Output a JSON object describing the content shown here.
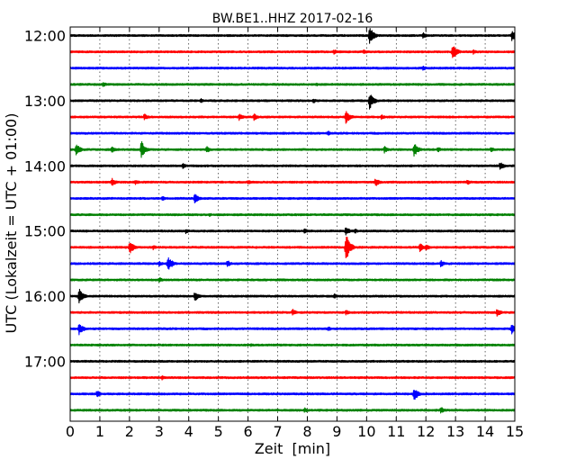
{
  "chart_data": {
    "type": "line",
    "title": "BW.BE1..HHZ 2017-02-16",
    "xlabel": "Zeit  [min]",
    "ylabel": "UTC (Lokalzeit = UTC + 01:00)",
    "xlim": [
      0,
      15
    ],
    "xticks": [
      "0",
      "1",
      "2",
      "3",
      "4",
      "5",
      "6",
      "7",
      "8",
      "9",
      "10",
      "11",
      "12",
      "13",
      "14",
      "15"
    ],
    "y_tick_labels": [
      "12:00",
      "13:00",
      "14:00",
      "15:00",
      "16:00",
      "17:00"
    ],
    "grid": "vertical dotted",
    "trace_colors": [
      "#000000",
      "#ff0000",
      "#0000ff",
      "#008000"
    ],
    "traces": [
      {
        "start": "12:00",
        "events": [
          [
            10.1,
            10
          ],
          [
            11.9,
            4
          ],
          [
            14.9,
            6
          ]
        ]
      },
      {
        "start": "12:15",
        "events": [
          [
            12.9,
            9
          ],
          [
            8.9,
            3
          ],
          [
            9.9,
            3
          ],
          [
            13.6,
            3
          ]
        ]
      },
      {
        "start": "12:30",
        "events": [
          [
            11.9,
            3
          ]
        ]
      },
      {
        "start": "12:45",
        "events": [
          [
            1.1,
            3
          ],
          [
            8.3,
            2
          ]
        ]
      },
      {
        "start": "13:00",
        "events": [
          [
            10.1,
            10
          ],
          [
            4.4,
            3
          ],
          [
            8.2,
            3
          ]
        ]
      },
      {
        "start": "13:15",
        "events": [
          [
            9.3,
            8
          ],
          [
            2.5,
            4
          ],
          [
            5.7,
            4
          ],
          [
            6.2,
            4
          ],
          [
            10.5,
            3
          ]
        ]
      },
      {
        "start": "13:30",
        "events": [
          [
            8.7,
            3
          ]
        ]
      },
      {
        "start": "13:45",
        "events": [
          [
            2.4,
            10
          ],
          [
            0.2,
            7
          ],
          [
            11.6,
            8
          ],
          [
            1.4,
            4
          ],
          [
            4.6,
            4
          ],
          [
            10.6,
            4
          ],
          [
            12.4,
            3
          ],
          [
            14.2,
            3
          ]
        ]
      },
      {
        "start": "14:00",
        "events": [
          [
            14.5,
            5
          ],
          [
            3.8,
            3
          ]
        ]
      },
      {
        "start": "14:15",
        "events": [
          [
            1.4,
            5
          ],
          [
            10.3,
            5
          ],
          [
            2.2,
            3
          ],
          [
            6.0,
            3
          ],
          [
            13.4,
            3
          ]
        ]
      },
      {
        "start": "14:30",
        "events": [
          [
            4.2,
            6
          ],
          [
            3.1,
            3
          ]
        ]
      },
      {
        "start": "14:45",
        "events": [
          [
            4.7,
            2
          ]
        ]
      },
      {
        "start": "15:00",
        "events": [
          [
            9.3,
            5
          ],
          [
            3.9,
            3
          ],
          [
            7.9,
            3
          ],
          [
            9.6,
            3
          ]
        ]
      },
      {
        "start": "15:15",
        "events": [
          [
            2.0,
            8
          ],
          [
            9.3,
            16
          ],
          [
            11.8,
            5
          ],
          [
            2.8,
            3
          ],
          [
            12.0,
            4
          ]
        ]
      },
      {
        "start": "15:30",
        "events": [
          [
            3.3,
            9
          ],
          [
            5.3,
            4
          ],
          [
            12.5,
            4
          ],
          [
            3.0,
            3
          ]
        ]
      },
      {
        "start": "15:45",
        "events": [
          [
            3.0,
            3
          ]
        ]
      },
      {
        "start": "16:00",
        "events": [
          [
            0.3,
            9
          ],
          [
            4.2,
            6
          ],
          [
            8.9,
            3
          ]
        ]
      },
      {
        "start": "16:15",
        "events": [
          [
            7.5,
            4
          ],
          [
            14.4,
            5
          ],
          [
            9.3,
            3
          ]
        ]
      },
      {
        "start": "16:30",
        "events": [
          [
            0.3,
            7
          ],
          [
            14.9,
            7
          ],
          [
            8.7,
            3
          ]
        ]
      },
      {
        "start": "16:45",
        "events": [
          [
            6.1,
            2
          ]
        ]
      },
      {
        "start": "17:00",
        "events": []
      },
      {
        "start": "17:15",
        "events": [
          [
            3.1,
            3
          ]
        ]
      },
      {
        "start": "17:30",
        "events": [
          [
            11.6,
            8
          ],
          [
            0.9,
            4
          ]
        ]
      },
      {
        "start": "17:45",
        "events": [
          [
            7.9,
            3
          ],
          [
            12.5,
            4
          ]
        ]
      }
    ]
  }
}
